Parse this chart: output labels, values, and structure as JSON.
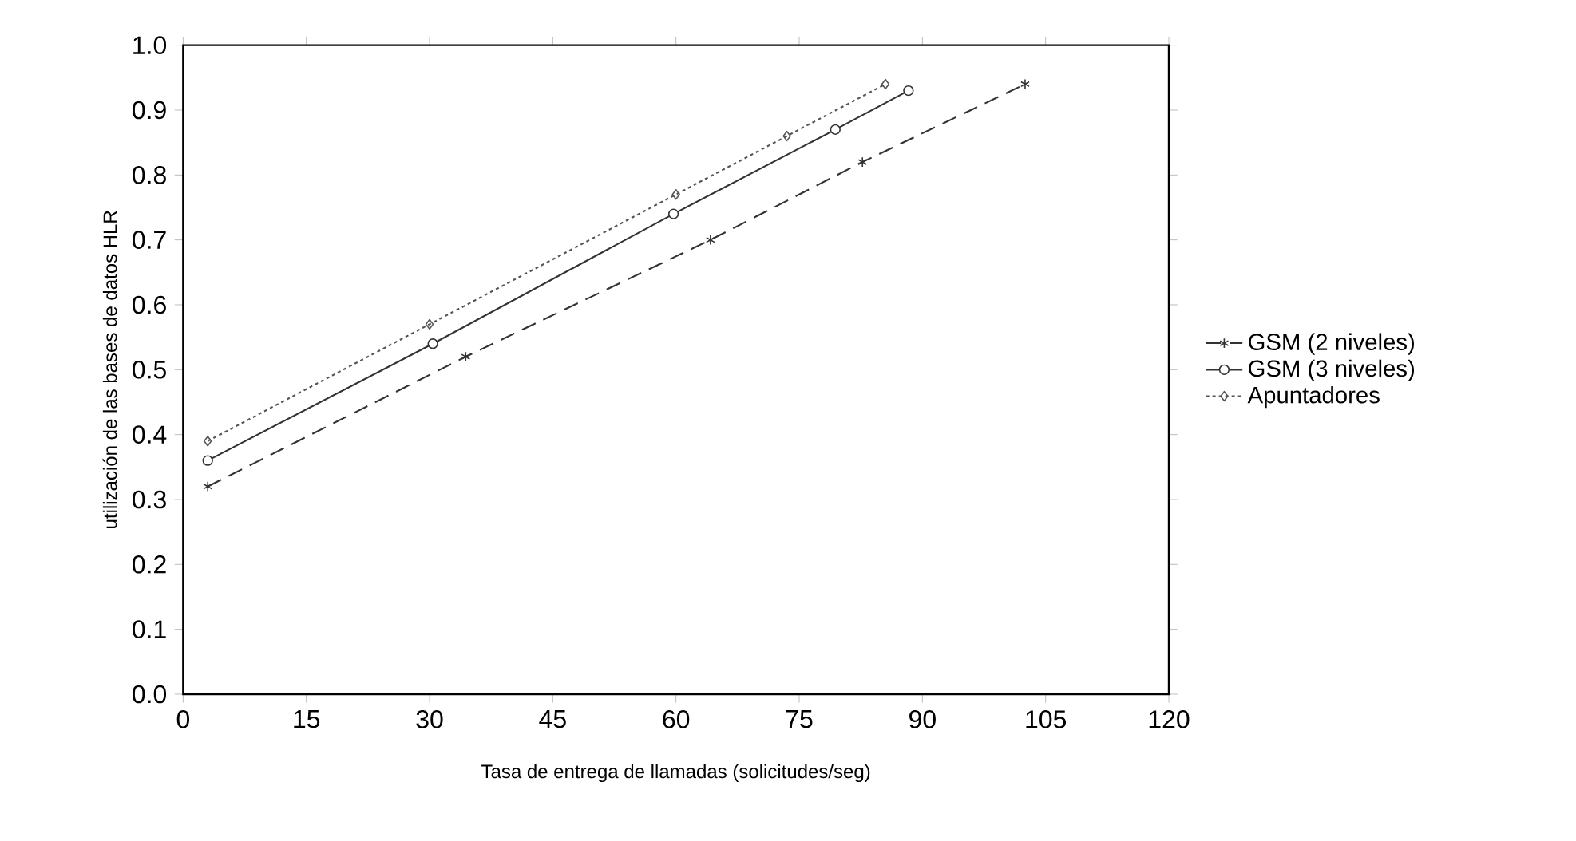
{
  "chart_data": {
    "type": "line",
    "xlabel": "Tasa de entrega de llamadas (solicitudes/seg)",
    "ylabel": "utilización de las bases de datos HLR",
    "xlim": [
      0,
      120
    ],
    "xticks": [
      0,
      15,
      30,
      45,
      60,
      75,
      90,
      105,
      120
    ],
    "ylim": [
      0,
      1.0
    ],
    "yticks": [
      {
        "value": 0,
        "label": "0.0"
      },
      0.1,
      0.2,
      0.3,
      0.4,
      0.5,
      0.6,
      0.7,
      0.8,
      0.9,
      {
        "value": 1.0,
        "label": "1.0"
      }
    ],
    "legend": "right",
    "grid": false,
    "series": [
      {
        "name": "GSM (2 niveles)",
        "color": "#333333",
        "marker": "cross",
        "line_style": "dashed",
        "x": [
          3,
          34.4,
          64.2,
          82.7,
          102.5
        ],
        "values": [
          0.32,
          0.52,
          0.7,
          0.82,
          0.94
        ]
      },
      {
        "name": "GSM (3 niveles)",
        "color": "#333333",
        "marker": "circle",
        "line_style": "solid",
        "x": [
          3,
          30.4,
          59.7,
          79.4,
          88.3
        ],
        "values": [
          0.36,
          0.54,
          0.74,
          0.87,
          0.93
        ]
      },
      {
        "name": "Apuntadores",
        "color": "#555555",
        "marker": "diamond",
        "line_style": "dotted",
        "x": [
          3,
          30,
          60,
          73.5,
          85.5
        ],
        "values": [
          0.39,
          0.57,
          0.77,
          0.86,
          0.94
        ]
      }
    ]
  }
}
